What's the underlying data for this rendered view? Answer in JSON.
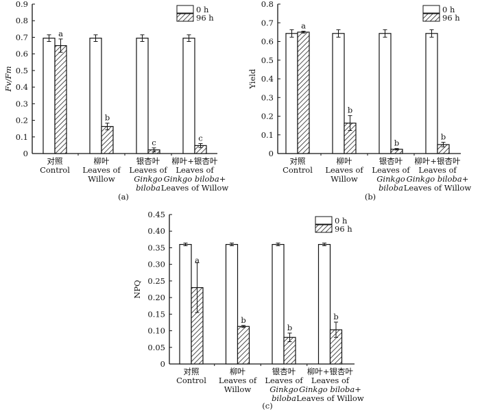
{
  "chart_data": [
    {
      "type": "bar",
      "panel_label": "(a)",
      "ylabel": "Fv/Fm",
      "ylim": [
        0,
        0.9
      ],
      "yticks": [
        "0",
        "0.1",
        "0.2",
        "0.3",
        "0.4",
        "0.5",
        "0.6",
        "0.7",
        "0.8",
        "0.9"
      ],
      "ytick_values": [
        0,
        0.1,
        0.2,
        0.3,
        0.4,
        0.5,
        0.6,
        0.7,
        0.8,
        0.9
      ],
      "legend": [
        "0 h",
        "96 h"
      ],
      "legend_position": "top-right",
      "categories": [
        [
          "对照",
          "Control"
        ],
        [
          "柳叶",
          "Leaves of",
          "Willow"
        ],
        [
          "银杏叶",
          "Leaves of",
          "Ginkgo",
          "biloba"
        ],
        [
          "柳叶+银杏叶",
          "Leaves of",
          "Ginkgo biloba+",
          "Leaves of Willow"
        ]
      ],
      "series": [
        {
          "name": "0 h",
          "values": [
            0.695,
            0.695,
            0.695,
            0.695
          ],
          "errors": [
            0.02,
            0.02,
            0.02,
            0.02
          ]
        },
        {
          "name": "96 h",
          "values": [
            0.65,
            0.163,
            0.022,
            0.048
          ],
          "errors": [
            0.04,
            0.02,
            0.012,
            0.012
          ],
          "letters": [
            "a",
            "b",
            "c",
            "c"
          ]
        }
      ]
    },
    {
      "type": "bar",
      "panel_label": "(b)",
      "ylabel": "Yield",
      "ylim": [
        0,
        0.8
      ],
      "yticks": [
        "0",
        "0.1",
        "0.2",
        "0.3",
        "0.4",
        "0.5",
        "0.6",
        "0.7",
        "0.8"
      ],
      "ytick_values": [
        0,
        0.1,
        0.2,
        0.3,
        0.4,
        0.5,
        0.6,
        0.7,
        0.8
      ],
      "legend": [
        "0 h",
        "96 h"
      ],
      "legend_position": "top-right",
      "categories": [
        [
          "对照",
          "Control"
        ],
        [
          "柳叶",
          "Leaves of",
          "Willow"
        ],
        [
          "银杏叶",
          "Leaves of",
          "Ginkgo",
          "biloba"
        ],
        [
          "柳叶+银杏叶",
          "Leaves of",
          "Ginkgo biloba+",
          "Leaves of Willow"
        ]
      ],
      "series": [
        {
          "name": "0 h",
          "values": [
            0.643,
            0.643,
            0.643,
            0.643
          ],
          "errors": [
            0.02,
            0.02,
            0.02,
            0.02
          ]
        },
        {
          "name": "96 h",
          "values": [
            0.65,
            0.163,
            0.023,
            0.048
          ],
          "errors": [
            0.005,
            0.04,
            0.004,
            0.012
          ],
          "letters": [
            "a",
            "b",
            "b",
            "b"
          ]
        }
      ]
    },
    {
      "type": "bar",
      "panel_label": "(c)",
      "ylabel": "NPQ",
      "ylim": [
        0,
        0.45
      ],
      "yticks": [
        "0",
        "0.05",
        "0.10",
        "0.15",
        "0.20",
        "0.25",
        "0.30",
        "0.35",
        "0.40",
        "0.45"
      ],
      "ytick_values": [
        0,
        0.05,
        0.1,
        0.15,
        0.2,
        0.25,
        0.3,
        0.35,
        0.4,
        0.45
      ],
      "legend": [
        "0 h",
        "96 h"
      ],
      "legend_position": "top-right",
      "categories": [
        [
          "对照",
          "Control"
        ],
        [
          "柳叶",
          "Leaves of",
          "Willow"
        ],
        [
          "银杏叶",
          "Leaves of",
          "Ginkgo",
          "biloba"
        ],
        [
          "柳叶+银杏叶",
          "Leaves of",
          "Ginkgo biloba+",
          "Leaves of Willow"
        ]
      ],
      "series": [
        {
          "name": "0 h",
          "values": [
            0.36,
            0.36,
            0.36,
            0.36
          ],
          "errors": [
            0.004,
            0.004,
            0.004,
            0.004
          ]
        },
        {
          "name": "96 h",
          "values": [
            0.23,
            0.113,
            0.08,
            0.103
          ],
          "errors": [
            0.075,
            0.003,
            0.013,
            0.023
          ],
          "letters": [
            "a",
            "b",
            "b",
            "b"
          ]
        }
      ]
    }
  ]
}
